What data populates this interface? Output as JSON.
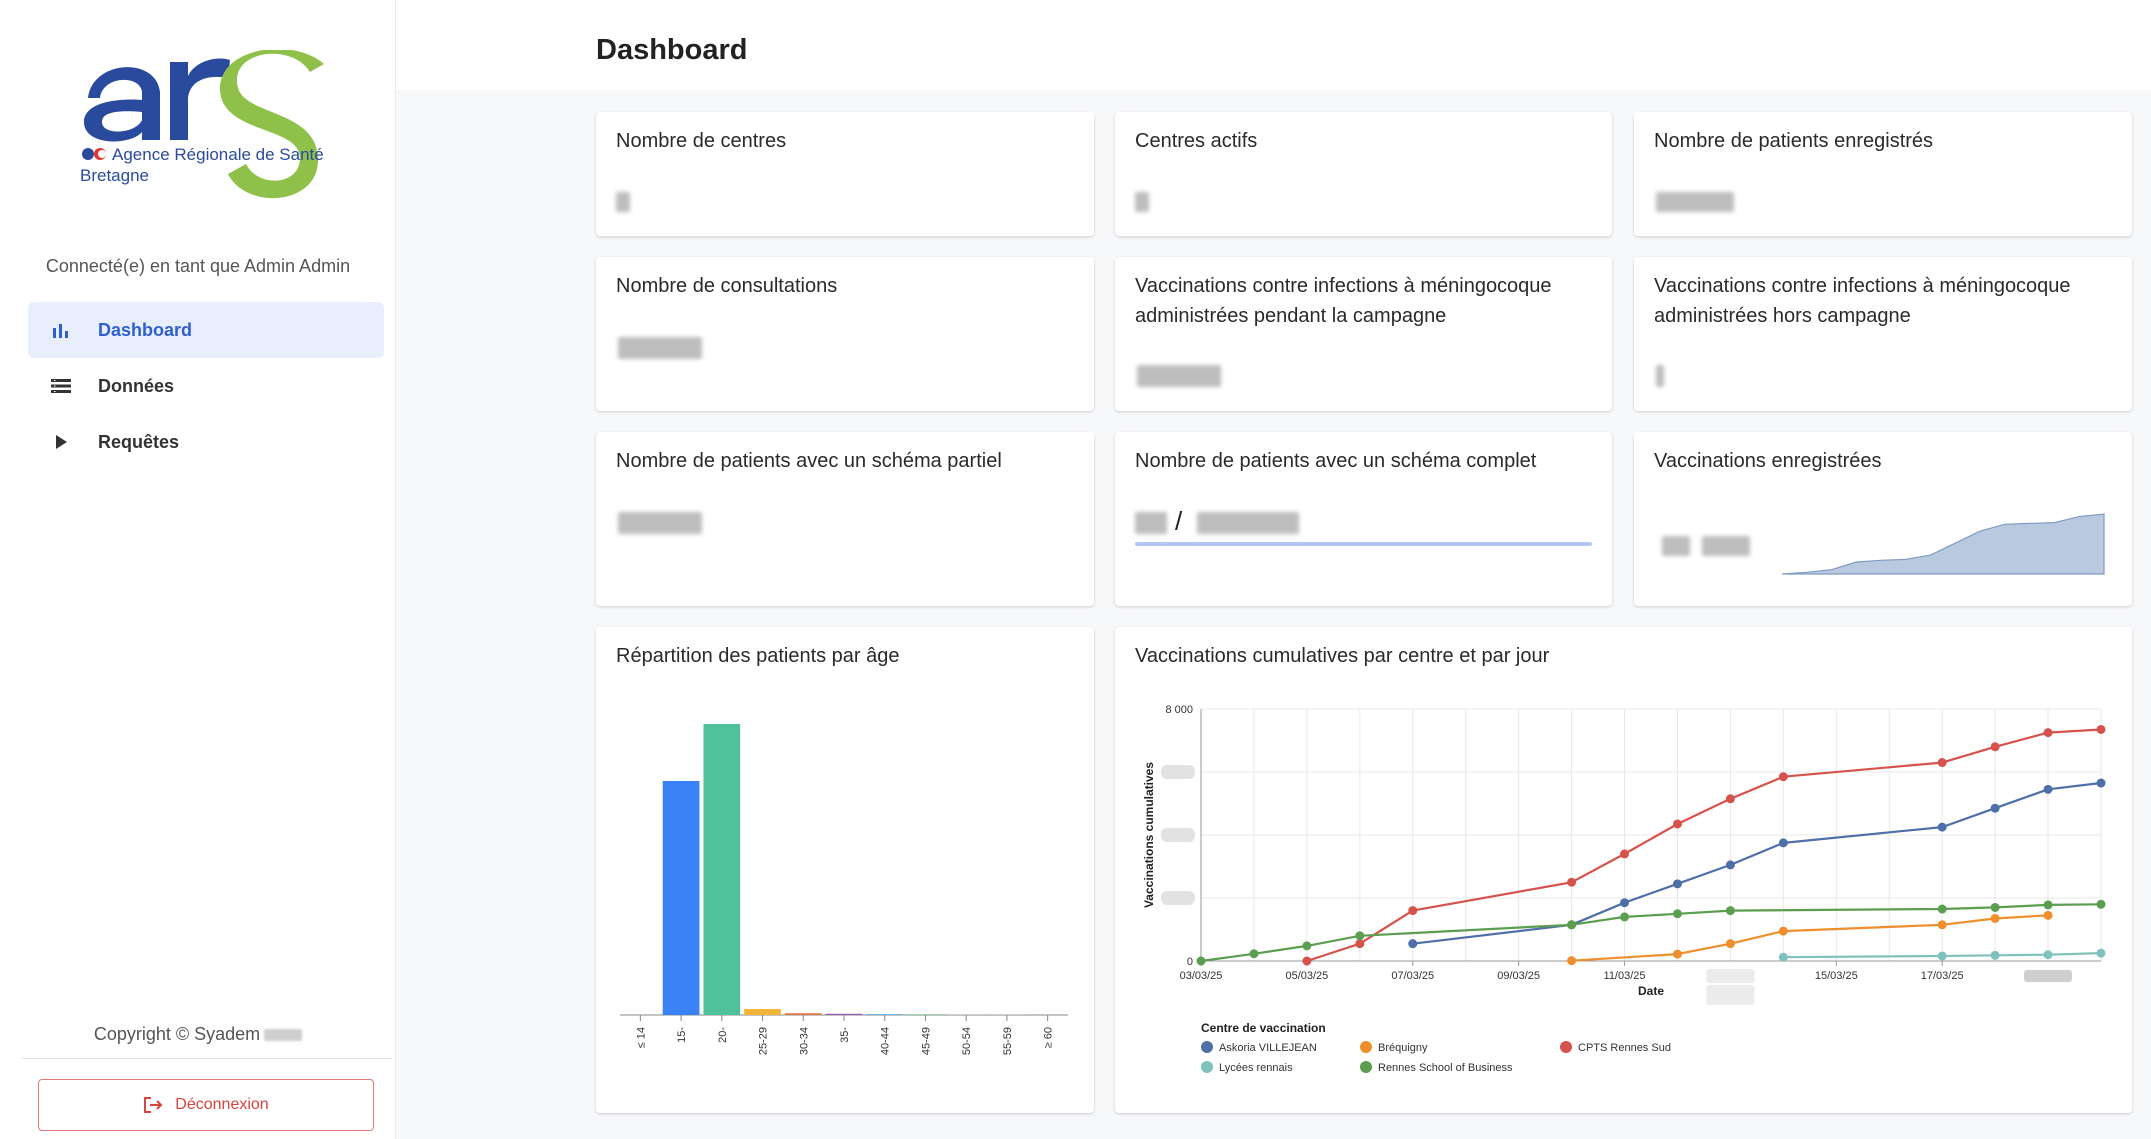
{
  "app": {
    "org_name": "Agence Régionale de Santé",
    "region": "Bretagne",
    "logo_text": "ars"
  },
  "sidebar": {
    "connected_text": "Connecté(e) en tant que Admin Admin",
    "items": [
      {
        "label": "Dashboard",
        "icon": "bar-chart-icon",
        "active": true
      },
      {
        "label": "Données",
        "icon": "list-icon",
        "active": false
      },
      {
        "label": "Requêtes",
        "icon": "play-icon",
        "active": false
      }
    ],
    "copyright": "Copyright © Syadem",
    "logout_label": "Déconnexion"
  },
  "header": {
    "title": "Dashboard"
  },
  "cards": {
    "centres": {
      "title": "Nombre de centres"
    },
    "actifs": {
      "title": "Centres actifs"
    },
    "patients": {
      "title": "Nombre de patients enregistrés"
    },
    "consultations": {
      "title": "Nombre de consultations"
    },
    "vacc_campagne": {
      "title": "Vaccinations contre infections à méningocoque administrées pendant la campagne"
    },
    "vacc_hors": {
      "title": "Vaccinations contre infections à méningocoque administrées hors campagne"
    },
    "schema_partiel": {
      "title": "Nombre de patients avec un schéma partiel"
    },
    "schema_complet": {
      "title": "Nombre de patients avec un schéma complet",
      "separator": "/"
    },
    "vacc_enregistrees": {
      "title": "Vaccinations enregistrées"
    },
    "age": {
      "title": "Répartition des patients par âge"
    },
    "cumulative": {
      "title": "Vaccinations cumulatives par centre et par jour"
    }
  },
  "chart_data": [
    {
      "type": "area",
      "name": "vaccinations-enregistrees-sparkline",
      "values": [
        0,
        2,
        5,
        14,
        16,
        17,
        22,
        36,
        50,
        58,
        59,
        60,
        67,
        70
      ]
    },
    {
      "type": "bar",
      "title": "Répartition des patients par âge",
      "categories": [
        "≤ 14",
        "15-",
        "20-",
        "25-29",
        "30-34",
        "35-",
        "40-44",
        "45-49",
        "50-54",
        "55-59",
        "≥ 60"
      ],
      "values": [
        0,
        78,
        97,
        2,
        0.6,
        0.4,
        0.3,
        0.2,
        0.1,
        0.1,
        0
      ],
      "colors": [
        "#cccccc",
        "#3b82f6",
        "#4fc29b",
        "#f2b53a",
        "#e07b4a",
        "#9b59b6",
        "#5dade2",
        "#52be80",
        "#aaaaaa",
        "#aaaaaa",
        "#cccccc"
      ]
    },
    {
      "type": "line",
      "title": "Vaccinations cumulatives par centre et par jour",
      "xlabel": "Date",
      "ylabel": "Vaccinations cumulatives",
      "ylim": [
        0,
        8000
      ],
      "y_ticks": [
        "0",
        "8 000"
      ],
      "x_ticks": [
        "03/03/25",
        "05/03/25",
        "07/03/25",
        "09/03/25",
        "11/03/25",
        "15/03/25",
        "17/03/25"
      ],
      "legend_title": "Centre de vaccination",
      "legend_position": "bottom",
      "series": [
        {
          "name": "Askoria VILLEJEAN",
          "color": "#4e6fa7",
          "x": [
            "2025-03-07",
            "2025-03-10",
            "2025-03-11",
            "2025-03-12",
            "2025-03-13",
            "2025-03-14",
            "2025-03-17",
            "2025-03-18",
            "2025-03-19",
            "2025-03-20"
          ],
          "y": [
            550,
            1150,
            1850,
            2450,
            3050,
            3750,
            4250,
            4850,
            5450,
            5650
          ]
        },
        {
          "name": "Bréquigny",
          "color": "#ee8e2c",
          "x": [
            "2025-03-10",
            "2025-03-12",
            "2025-03-13",
            "2025-03-14",
            "2025-03-17",
            "2025-03-18",
            "2025-03-19"
          ],
          "y": [
            10,
            220,
            550,
            950,
            1150,
            1350,
            1450
          ]
        },
        {
          "name": "CPTS Rennes Sud",
          "color": "#d6524c",
          "x": [
            "2025-03-05",
            "2025-03-06",
            "2025-03-07",
            "2025-03-10",
            "2025-03-11",
            "2025-03-12",
            "2025-03-13",
            "2025-03-14",
            "2025-03-17",
            "2025-03-18",
            "2025-03-19",
            "2025-03-20"
          ],
          "y": [
            0,
            550,
            1600,
            2500,
            3400,
            4350,
            5150,
            5850,
            6300,
            6800,
            7250,
            7350
          ]
        },
        {
          "name": "Lycées rennais",
          "color": "#7fc1bd",
          "x": [
            "2025-03-14",
            "2025-03-17",
            "2025-03-18",
            "2025-03-19",
            "2025-03-20"
          ],
          "y": [
            120,
            160,
            180,
            200,
            250
          ]
        },
        {
          "name": "Rennes School of Business",
          "color": "#5b9e4f",
          "x": [
            "2025-03-03",
            "2025-03-04",
            "2025-03-05",
            "2025-03-06",
            "2025-03-10",
            "2025-03-11",
            "2025-03-12",
            "2025-03-13",
            "2025-03-17",
            "2025-03-18",
            "2025-03-19",
            "2025-03-20"
          ],
          "y": [
            0,
            230,
            480,
            800,
            1150,
            1400,
            1500,
            1600,
            1650,
            1700,
            1780,
            1800
          ]
        }
      ]
    }
  ]
}
